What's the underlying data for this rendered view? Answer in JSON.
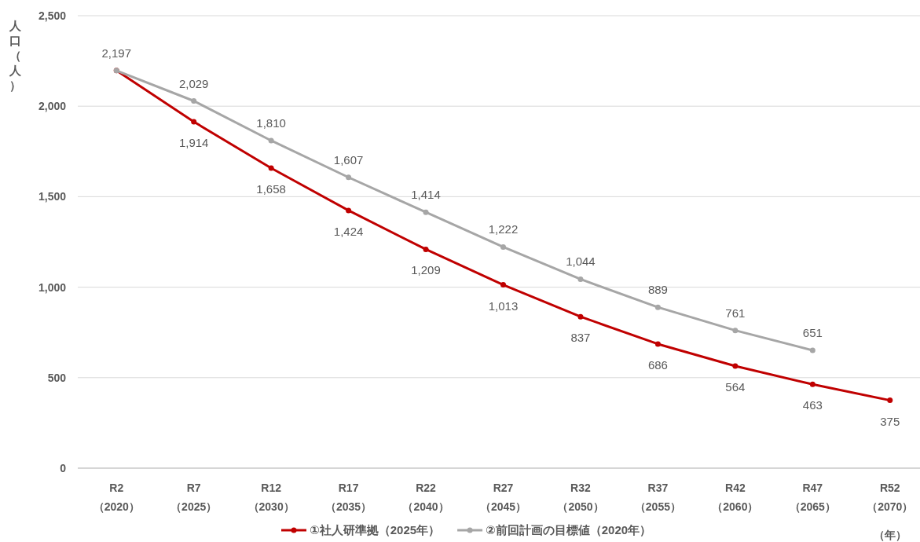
{
  "chart_data": {
    "type": "line",
    "ylabel": "人口（人）",
    "xlabel": "（年）",
    "categories": [
      "R2\n（2020）",
      "R7\n（2025）",
      "R12\n（2030）",
      "R17\n（2035）",
      "R22\n（2040）",
      "R27\n（2045）",
      "R32\n（2050）",
      "R37\n（2055）",
      "R42\n（2060）",
      "R47\n（2065）",
      "R52\n（2070）"
    ],
    "series": [
      {
        "name": "①社人研準拠（2025年）",
        "color": "#c00000",
        "values": [
          2197,
          1914,
          1658,
          1424,
          1209,
          1013,
          837,
          686,
          564,
          463,
          375
        ],
        "value_labels": [
          null,
          "1,914",
          "1,658",
          "1,424",
          "1,209",
          "1,013",
          "837",
          "686",
          "564",
          "463",
          "375"
        ]
      },
      {
        "name": "②前回計画の目標値（2020年）",
        "color": "#a6a6a6",
        "values": [
          2197,
          2029,
          1810,
          1607,
          1414,
          1222,
          1044,
          889,
          761,
          651,
          null
        ],
        "value_labels": [
          "2,197",
          "2,029",
          "1,810",
          "1,607",
          "1,414",
          "1,222",
          "1,044",
          "889",
          "761",
          "651",
          null
        ]
      }
    ],
    "ylim": [
      0,
      2500
    ],
    "yticks": [
      {
        "value": 0,
        "label": "0"
      },
      {
        "value": 500,
        "label": "500"
      },
      {
        "value": 1000,
        "label": "1,000"
      },
      {
        "value": 1500,
        "label": "1,500"
      },
      {
        "value": 2000,
        "label": "2,000"
      },
      {
        "value": 2500,
        "label": "2,500"
      }
    ],
    "grid": "y",
    "legend": "bottom",
    "marker": "circle",
    "line_style": "solid"
  }
}
